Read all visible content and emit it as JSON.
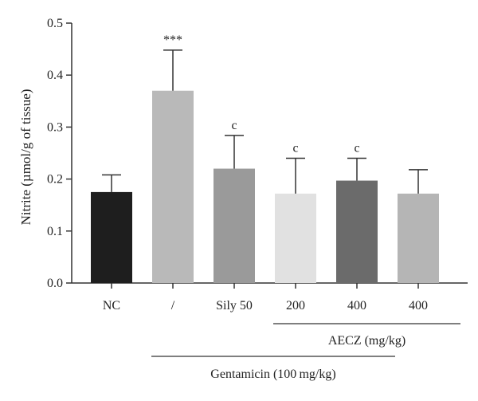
{
  "chart_data": {
    "type": "bar",
    "title": "",
    "ylabel": "Nitrite (µmol/g of tissue)",
    "xlabel": "",
    "ylim": [
      0,
      0.5
    ],
    "yticks": [
      "0.0",
      "0.1",
      "0.2",
      "0.3",
      "0.4",
      "0.5"
    ],
    "grid": false,
    "categories": [
      "NC",
      "/",
      "Sily 50",
      "200",
      "400",
      "400"
    ],
    "values": [
      0.175,
      0.37,
      0.22,
      0.172,
      0.197,
      0.172
    ],
    "errors": [
      0.033,
      0.078,
      0.064,
      0.068,
      0.043,
      0.046
    ],
    "significance": [
      "",
      "***",
      "c",
      "c",
      "c",
      ""
    ],
    "bar_colors": [
      "#1e1e1e",
      "#b9b9b9",
      "#9a9a9a",
      "#e1e1e1",
      "#6b6b6b",
      "#b5b5b5"
    ],
    "groups": [
      {
        "label": "AECZ (mg/kg)",
        "from": 3,
        "to": 5
      },
      {
        "label": "Gentamicin (100 mg/kg)",
        "from": 1,
        "to": 5
      }
    ]
  }
}
